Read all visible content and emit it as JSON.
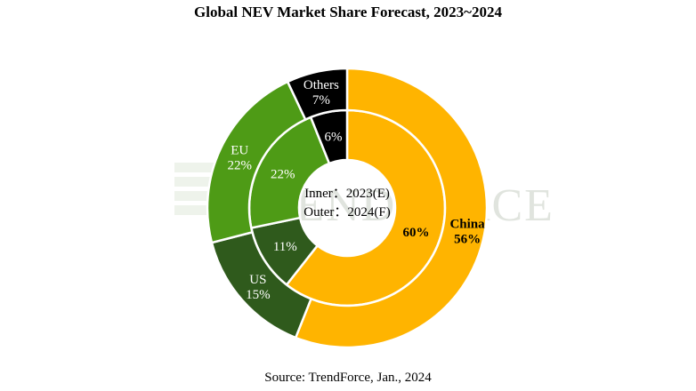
{
  "chart_data": {
    "type": "pie",
    "title": "Global NEV Market Share Forecast, 2023~2024",
    "source": "Source: TrendForce, Jan., 2024",
    "center_labels": [
      "Inner：2023(E)",
      "Outer：2024(F)"
    ],
    "watermark": "TRENDFORCE",
    "categories": [
      "China",
      "US",
      "EU",
      "Others"
    ],
    "colors": {
      "China": "#FFB400",
      "US": "#2F5A1C",
      "EU": "#4E9B16",
      "Others": "#000000"
    },
    "series": [
      {
        "name": "2023(E)",
        "ring": "inner",
        "values": [
          60,
          11,
          22,
          6
        ],
        "labels": [
          "60%",
          "11%",
          "22%",
          "6%"
        ]
      },
      {
        "name": "2024(F)",
        "ring": "outer",
        "values": [
          56,
          15,
          22,
          7
        ],
        "labels": [
          "China\n56%",
          "US\n15%",
          "EU\n22%",
          "Others\n7%"
        ]
      }
    ],
    "legend": "none"
  }
}
